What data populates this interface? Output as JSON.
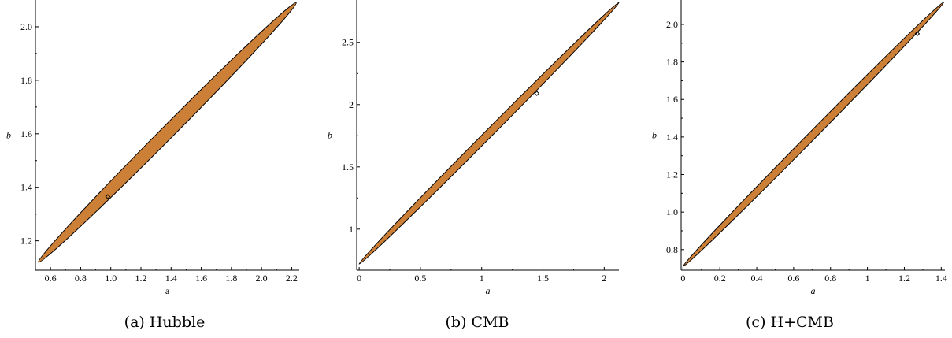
{
  "chart_data": [
    {
      "type": "ellipse_contour",
      "caption": "(a) Hubble",
      "xlabel": "a",
      "xlabel_italic": false,
      "ylabel": "b",
      "xlim": [
        0.5,
        2.25
      ],
      "ylim": [
        1.09,
        2.1
      ],
      "xticks": [
        {
          "v": 0.6,
          "t": "0.6"
        },
        {
          "v": 0.8,
          "t": "0.8"
        },
        {
          "v": 1.0,
          "t": "1.0"
        },
        {
          "v": 1.2,
          "t": "1.2"
        },
        {
          "v": 1.4,
          "t": "1.4"
        },
        {
          "v": 1.6,
          "t": "1.6"
        },
        {
          "v": 1.8,
          "t": "1.8"
        },
        {
          "v": 2.0,
          "t": "2.0"
        },
        {
          "v": 2.2,
          "t": "2.2"
        }
      ],
      "yticks": [
        {
          "v": 1.2,
          "t": "1.2"
        },
        {
          "v": 1.4,
          "t": "1.4"
        },
        {
          "v": 1.6,
          "t": "1.6"
        },
        {
          "v": 1.8,
          "t": "1.8"
        },
        {
          "v": 2.0,
          "t": "2.0"
        }
      ],
      "region_extremes": [
        [
          0.52,
          1.12
        ],
        [
          2.23,
          2.09
        ]
      ],
      "region_half_width": 0.043,
      "best_fit": {
        "a": 0.98,
        "b": 1.365
      },
      "fill_color": "#cc7f37",
      "grid": false
    },
    {
      "type": "ellipse_contour",
      "caption": "(b) CMB",
      "xlabel": "a",
      "xlabel_italic": true,
      "ylabel": "b",
      "xlim": [
        -0.02,
        2.12
      ],
      "ylim": [
        0.67,
        2.84
      ],
      "xticks": [
        {
          "v": 0,
          "t": "0"
        },
        {
          "v": 0.5,
          "t": "0.5"
        },
        {
          "v": 1,
          "t": "1"
        },
        {
          "v": 1.5,
          "t": "1.5"
        },
        {
          "v": 2,
          "t": "2"
        }
      ],
      "yticks": [
        {
          "v": 1,
          "t": "1"
        },
        {
          "v": 1.5,
          "t": "1.5"
        },
        {
          "v": 2,
          "t": "2"
        },
        {
          "v": 2.5,
          "t": "2.5"
        }
      ],
      "region_extremes": [
        [
          0.0,
          0.72
        ],
        [
          2.12,
          2.82
        ]
      ],
      "region_half_width": 0.031,
      "best_fit": {
        "a": 1.45,
        "b": 2.09
      },
      "fill_color": "#cc7f37",
      "grid": false
    },
    {
      "type": "ellipse_contour",
      "caption": "(c) H+CMB",
      "xlabel": "a",
      "xlabel_italic": true,
      "ylabel": "b",
      "xlim": [
        -0.01,
        1.42
      ],
      "ylim": [
        0.69,
        2.13
      ],
      "xticks": [
        {
          "v": 0,
          "t": "0"
        },
        {
          "v": 0.2,
          "t": "0.2"
        },
        {
          "v": 0.4,
          "t": "0.4"
        },
        {
          "v": 0.6,
          "t": "0.6"
        },
        {
          "v": 0.8,
          "t": "0.8"
        },
        {
          "v": 1,
          "t": "1"
        },
        {
          "v": 1.2,
          "t": "1.2"
        },
        {
          "v": 1.4,
          "t": "1.4"
        }
      ],
      "yticks": [
        {
          "v": 0.8,
          "t": "0.8"
        },
        {
          "v": 1.0,
          "t": "1.0"
        },
        {
          "v": 1.2,
          "t": "1.2"
        },
        {
          "v": 1.4,
          "t": "1.4"
        },
        {
          "v": 1.6,
          "t": "1.6"
        },
        {
          "v": 1.8,
          "t": "1.8"
        },
        {
          "v": 2.0,
          "t": "2.0"
        }
      ],
      "region_extremes": [
        [
          0.0,
          0.71
        ],
        [
          1.415,
          2.12
        ]
      ],
      "region_half_width": 0.021,
      "best_fit": {
        "a": 1.27,
        "b": 1.95
      },
      "fill_color": "#cc7f37",
      "grid": false
    }
  ]
}
